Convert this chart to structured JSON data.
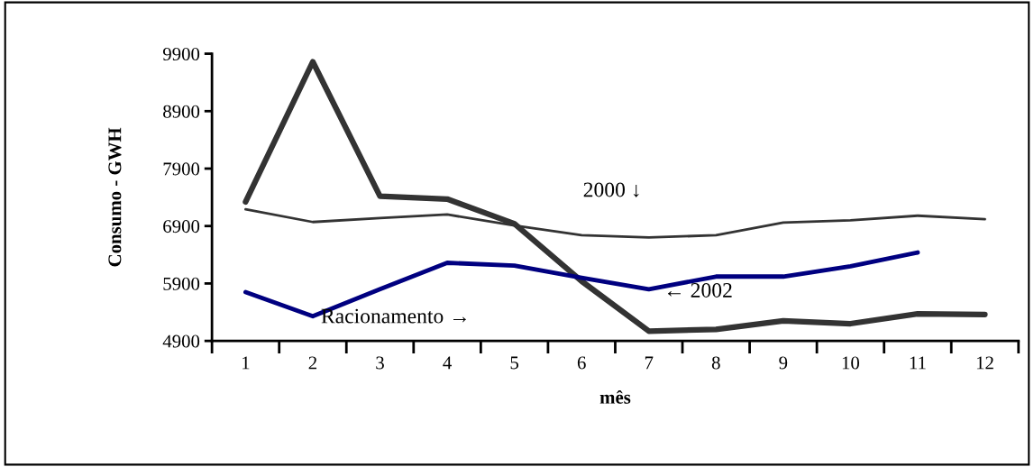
{
  "chart_data": {
    "type": "line",
    "xlabel": "mês",
    "ylabel": "Consumo - GWH",
    "categories": [
      "1",
      "2",
      "3",
      "4",
      "5",
      "6",
      "7",
      "8",
      "9",
      "10",
      "11",
      "12"
    ],
    "series": [
      {
        "color": "#333333",
        "values": [
          7190,
          6970,
          7040,
          7100,
          6910,
          6740,
          6700,
          6740,
          6960,
          7000,
          7080,
          7020
        ]
      },
      {
        "color": "#333333",
        "values": [
          7320,
          9760,
          7420,
          7370,
          6940,
          5940,
          5070,
          5100,
          5250,
          5200,
          5370,
          5360
        ]
      },
      {
        "color": "#000080",
        "values": [
          5750,
          5330,
          5800,
          6260,
          6210,
          6000,
          5800,
          6020,
          6020,
          6200,
          6440,
          null
        ]
      }
    ],
    "ylim": [
      4900,
      9900
    ],
    "yticks": [
      4900,
      5900,
      6900,
      7900,
      8900,
      9900
    ],
    "grid": false,
    "legend": false,
    "annotations": [
      "2000 ↓",
      "← 2002",
      "Racionamento →"
    ]
  }
}
